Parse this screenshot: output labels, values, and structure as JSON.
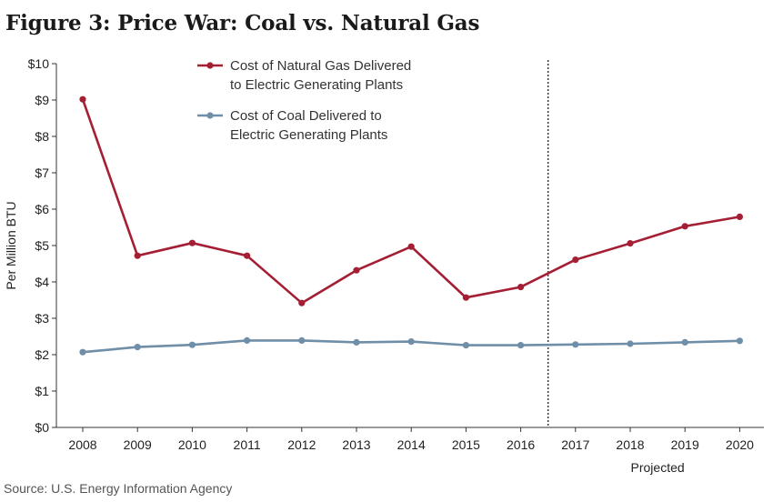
{
  "title": "Figure 3: Price War: Coal vs. Natural Gas",
  "source": "Source: U.S. Energy Information Agency",
  "chart_data": {
    "type": "line",
    "categories": [
      "2008",
      "2009",
      "2010",
      "2011",
      "2012",
      "2013",
      "2014",
      "2015",
      "2016",
      "2017",
      "2018",
      "2019",
      "2020"
    ],
    "ylabel": "Per Million BTU",
    "ylim": [
      0,
      10
    ],
    "yticks": [
      "$0",
      "$1",
      "$2",
      "$3",
      "$4",
      "$5",
      "$6",
      "$7",
      "$8",
      "$9",
      "$10"
    ],
    "grid": false,
    "legend_position": "top-left",
    "projected_label": "Projected",
    "projection_start_after": "2016",
    "series": [
      {
        "name": "Cost of Natural Gas Delivered to Electric Generating Plants",
        "legend_lines": [
          "Cost of Natural Gas Delivered",
          "to Electric Generating Plants"
        ],
        "color": "#a51f34",
        "values": [
          9.02,
          4.72,
          5.07,
          4.72,
          3.42,
          4.32,
          4.97,
          3.57,
          3.86,
          4.61,
          5.06,
          5.53,
          5.79
        ]
      },
      {
        "name": "Cost of Coal Delivered to Electric Generating Plants",
        "legend_lines": [
          "Cost of Coal Delivered to",
          "Electric Generating Plants"
        ],
        "color": "#6f8ea8",
        "values": [
          2.07,
          2.21,
          2.27,
          2.39,
          2.39,
          2.34,
          2.36,
          2.26,
          2.26,
          2.28,
          2.3,
          2.34,
          2.38
        ]
      }
    ]
  }
}
